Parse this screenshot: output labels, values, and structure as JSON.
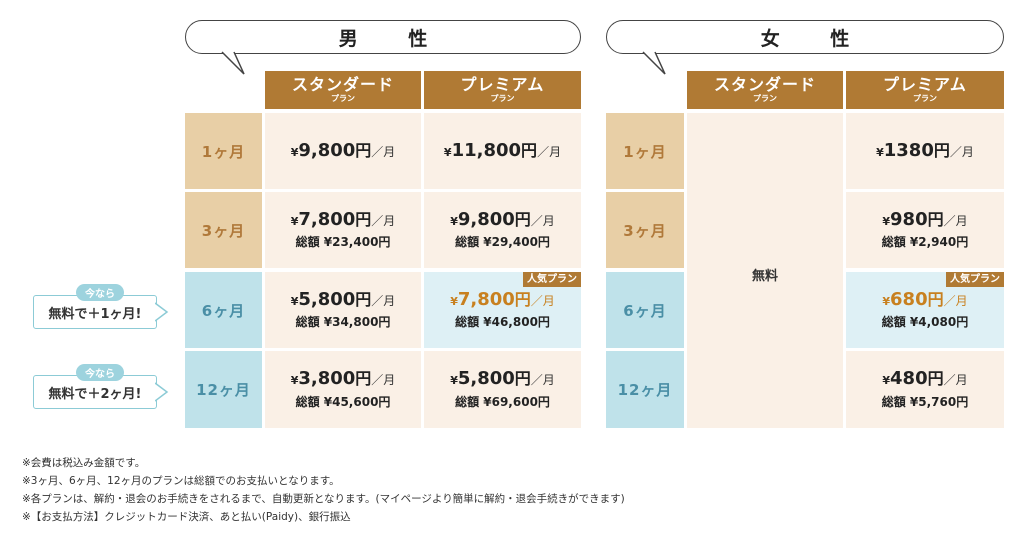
{
  "genders": {
    "male": "男 性",
    "female": "女 性"
  },
  "plan_headers": {
    "standard": "スタンダード",
    "premium": "プレミアム",
    "sub": "プラン"
  },
  "months": [
    "1ヶ月",
    "3ヶ月",
    "6ヶ月",
    "12ヶ月"
  ],
  "yen": "¥",
  "unit": "円",
  "per_month": "／月",
  "popular_badge": "人気プラン",
  "male": {
    "standard": [
      {
        "price": "9,800",
        "total": ""
      },
      {
        "price": "7,800",
        "total": "総額 ¥23,400円"
      },
      {
        "price": "5,800",
        "total": "総額 ¥34,800円"
      },
      {
        "price": "3,800",
        "total": "総額 ¥45,600円"
      }
    ],
    "premium": [
      {
        "price": "11,800",
        "total": ""
      },
      {
        "price": "9,800",
        "total": "総額 ¥29,400円"
      },
      {
        "price": "7,800",
        "total": "総額 ¥46,800円"
      },
      {
        "price": "5,800",
        "total": "総額 ¥69,600円"
      }
    ]
  },
  "female": {
    "standard_free": "無料",
    "premium": [
      {
        "price": "1380",
        "total": ""
      },
      {
        "price": "980",
        "total": "総額 ¥2,940円"
      },
      {
        "price": "680",
        "total": "総額 ¥4,080円"
      },
      {
        "price": "480",
        "total": "総額 ¥5,760円"
      }
    ]
  },
  "promos": [
    {
      "tag": "今なら",
      "text": "無料で＋1ヶ月!"
    },
    {
      "tag": "今なら",
      "text": "無料で＋2ヶ月!"
    }
  ],
  "notes": [
    "※会費は税込み金額です。",
    "※3ヶ月、6ヶ月、12ヶ月のプランは総額でのお支払いとなります。",
    "※各プランは、解約・退会のお手続きをされるまで、自動更新となります。(マイページより簡単に解約・退会手続きができます)",
    "※【お支払方法】クレジットカード決済、あと払い(Paidy)、銀行振込"
  ]
}
